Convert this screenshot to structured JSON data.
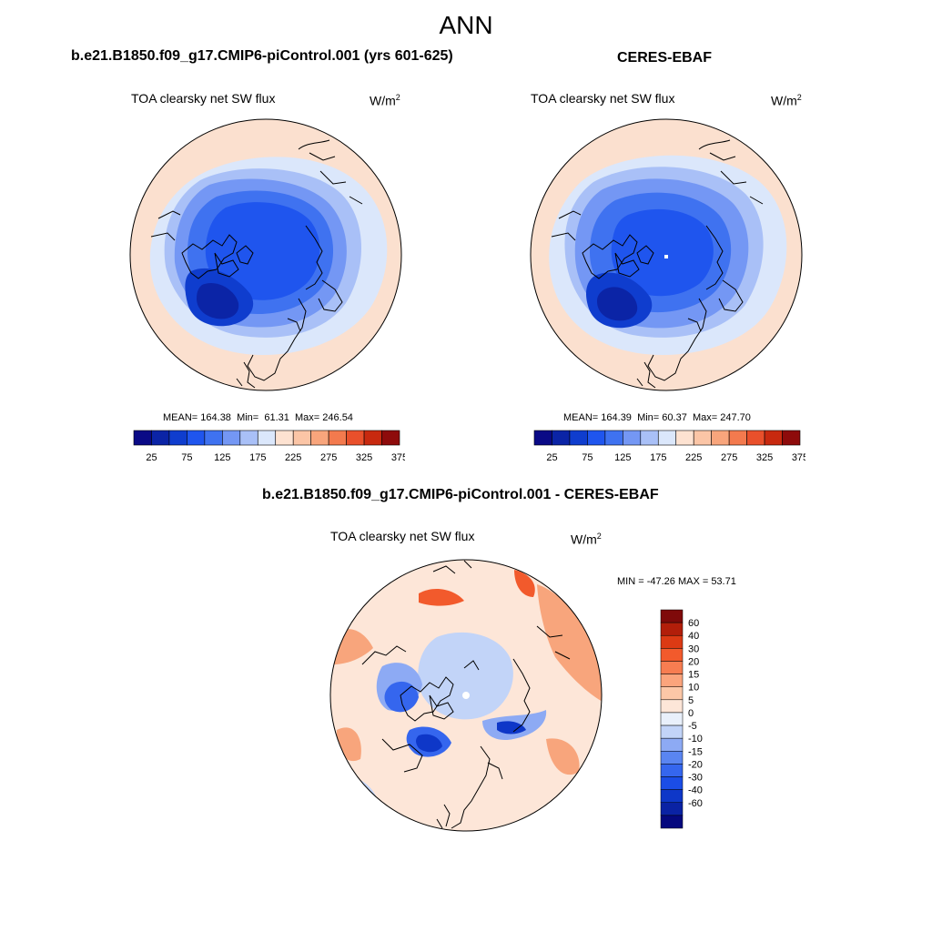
{
  "header": {
    "title": "ANN"
  },
  "panels": [
    {
      "case_title": "b.e21.B1850.f09_g17.CMIP6-piControl.001 (yrs 601-625)",
      "variable": "TOA clearsky net SW flux",
      "units_base": "W/m",
      "units_exp": "2",
      "stats": {
        "mean_label": "MEAN=",
        "mean": "164.38",
        "min_label": "Min=",
        "min": "61.31",
        "max_label": "Max=",
        "max": "246.54"
      }
    },
    {
      "case_title": "CERES-EBAF",
      "variable": "TOA clearsky net SW flux",
      "units_base": "W/m",
      "units_exp": "2",
      "stats": {
        "mean_label": "MEAN=",
        "mean": "164.39",
        "min_label": "Min=",
        "min": "60.37",
        "max_label": "Max=",
        "max": "247.70"
      }
    },
    {
      "case_title": "b.e21.B1850.f09_g17.CMIP6-piControl.001 - CERES-EBAF",
      "variable": "TOA clearsky net SW flux",
      "units_base": "W/m",
      "units_exp": "2",
      "stats_text": "MIN = -47.26 MAX =  53.71"
    }
  ],
  "colorbar_abs": {
    "colors": [
      "#0a0a86",
      "#0b24a6",
      "#0f3dce",
      "#1f55ee",
      "#3f72f0",
      "#7497f4",
      "#a9c0f7",
      "#dbe7fb",
      "#fde2d1",
      "#fbc5a6",
      "#f8a57c",
      "#f37a4e",
      "#e9502b",
      "#c8290f",
      "#8e0b0b"
    ],
    "tick_labels": [
      "25",
      "75",
      "125",
      "175",
      "225",
      "275",
      "325",
      "375"
    ]
  },
  "colorbar_diff": {
    "colors": [
      "#05087e",
      "#0a22a4",
      "#0e37c8",
      "#1b4de6",
      "#3566ee",
      "#5a85f1",
      "#8daaf4",
      "#c2d4f8",
      "#e9f0fb",
      "#fde6d8",
      "#fcc7a7",
      "#fba47c",
      "#f77d51",
      "#f25a2c",
      "#dc3a14",
      "#b21e0a",
      "#7f0a0a"
    ],
    "tick_labels": [
      "60",
      "40",
      "30",
      "20",
      "15",
      "10",
      "5",
      "0",
      "-5",
      "-10",
      "-15",
      "-20",
      "-30",
      "-40",
      "-60"
    ]
  },
  "map_colors": {
    "ring1": "#fbe0cf",
    "ring2": "#dbe7fb",
    "ring3": "#a9c0f7",
    "ring4": "#7497f4",
    "ring5": "#3f72f0",
    "core": "#1f55ee",
    "deep": "#0f3dce",
    "darkest": "#0b24a6",
    "coast": "#000000",
    "diff_base": "#fde6d8",
    "diff_warm": "#f8a57c",
    "diff_hot": "#f25a2c",
    "diff_cool": "#c2d4f8",
    "diff_mid": "#8daaf4",
    "diff_cold": "#3566ee",
    "diff_deep": "#0e37c8"
  }
}
